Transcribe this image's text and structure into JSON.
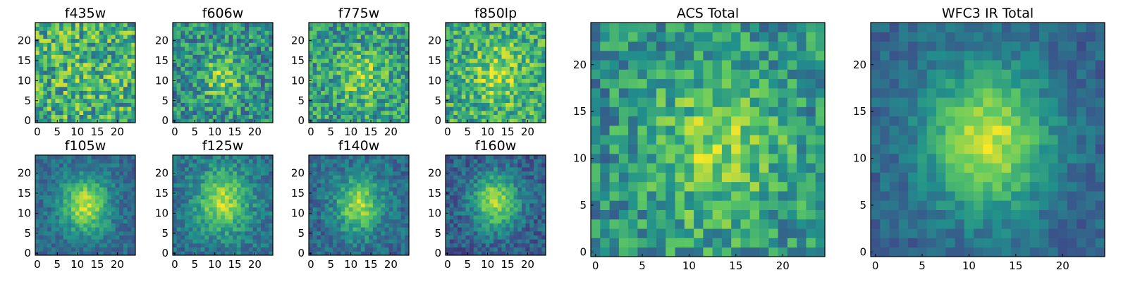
{
  "figure": {
    "colormap": [
      "#440154",
      "#3b528b",
      "#21918c",
      "#5ec962",
      "#fde725"
    ],
    "background": "#ffffff"
  },
  "chart_data": [
    {
      "type": "heatmap",
      "title": "f435w",
      "xlabel": "",
      "ylabel": "",
      "grid_size": 25,
      "xlim": [
        0,
        24
      ],
      "ylim": [
        0,
        24
      ],
      "xticks": [
        0,
        5,
        10,
        15,
        20
      ],
      "yticks": [
        0,
        5,
        10,
        15,
        20
      ],
      "pattern": {
        "peak": [
          12,
          12
        ],
        "sigma": 6,
        "amplitude": 0.05,
        "base": 0.62,
        "noise": 0.3,
        "seed": 11
      }
    },
    {
      "type": "heatmap",
      "title": "f606w",
      "xlabel": "",
      "ylabel": "",
      "grid_size": 25,
      "xlim": [
        0,
        24
      ],
      "ylim": [
        0,
        24
      ],
      "xticks": [
        0,
        5,
        10,
        15,
        20
      ],
      "yticks": [
        0,
        5,
        10,
        15,
        20
      ],
      "pattern": {
        "peak": [
          12,
          11
        ],
        "sigma": 3.5,
        "amplitude": 0.3,
        "base": 0.5,
        "noise": 0.25,
        "seed": 23
      }
    },
    {
      "type": "heatmap",
      "title": "f775w",
      "xlabel": "",
      "ylabel": "",
      "grid_size": 25,
      "xlim": [
        0,
        24
      ],
      "ylim": [
        0,
        24
      ],
      "xticks": [
        0,
        5,
        10,
        15,
        20
      ],
      "yticks": [
        0,
        5,
        10,
        15,
        20
      ],
      "pattern": {
        "peak": [
          13,
          11
        ],
        "sigma": 4,
        "amplitude": 0.25,
        "base": 0.55,
        "noise": 0.25,
        "seed": 37
      }
    },
    {
      "type": "heatmap",
      "title": "f850lp",
      "xlabel": "",
      "ylabel": "",
      "grid_size": 25,
      "xlim": [
        0,
        24
      ],
      "ylim": [
        0,
        24
      ],
      "xticks": [
        0,
        5,
        10,
        15,
        20
      ],
      "yticks": [
        0,
        5,
        10,
        15,
        20
      ],
      "pattern": {
        "peak": [
          13,
          12
        ],
        "sigma": 4.5,
        "amplitude": 0.25,
        "base": 0.6,
        "noise": 0.25,
        "seed": 41
      }
    },
    {
      "type": "heatmap",
      "title": "f105w",
      "xlabel": "",
      "ylabel": "",
      "grid_size": 25,
      "xlim": [
        0,
        24
      ],
      "ylim": [
        0,
        24
      ],
      "xticks": [
        0,
        5,
        10,
        15,
        20
      ],
      "yticks": [
        0,
        5,
        10,
        15,
        20
      ],
      "pattern": {
        "peak": [
          12,
          12
        ],
        "sigma": 4,
        "amplitude": 0.55,
        "base": 0.35,
        "noise": 0.12,
        "seed": 53
      }
    },
    {
      "type": "heatmap",
      "title": "f125w",
      "xlabel": "",
      "ylabel": "",
      "grid_size": 25,
      "xlim": [
        0,
        24
      ],
      "ylim": [
        0,
        24
      ],
      "xticks": [
        0,
        5,
        10,
        15,
        20
      ],
      "yticks": [
        0,
        5,
        10,
        15,
        20
      ],
      "pattern": {
        "peak": [
          12,
          13
        ],
        "sigma": 4.5,
        "amplitude": 0.5,
        "base": 0.38,
        "noise": 0.14,
        "seed": 67
      }
    },
    {
      "type": "heatmap",
      "title": "f140w",
      "xlabel": "",
      "ylabel": "",
      "grid_size": 25,
      "xlim": [
        0,
        24
      ],
      "ylim": [
        0,
        24
      ],
      "xticks": [
        0,
        5,
        10,
        15,
        20
      ],
      "yticks": [
        0,
        5,
        10,
        15,
        20
      ],
      "pattern": {
        "peak": [
          12,
          12
        ],
        "sigma": 4,
        "amplitude": 0.5,
        "base": 0.35,
        "noise": 0.14,
        "seed": 79
      }
    },
    {
      "type": "heatmap",
      "title": "f160w",
      "xlabel": "",
      "ylabel": "",
      "grid_size": 25,
      "xlim": [
        0,
        24
      ],
      "ylim": [
        0,
        24
      ],
      "xticks": [
        0,
        5,
        10,
        15,
        20
      ],
      "yticks": [
        0,
        5,
        10,
        15,
        20
      ],
      "pattern": {
        "peak": [
          12,
          13
        ],
        "sigma": 4,
        "amplitude": 0.55,
        "base": 0.3,
        "noise": 0.14,
        "seed": 97
      }
    },
    {
      "type": "heatmap",
      "title": "ACS Total",
      "xlabel": "",
      "ylabel": "",
      "grid_size": 25,
      "xlim": [
        0,
        24
      ],
      "ylim": [
        0,
        24
      ],
      "xticks": [
        0,
        5,
        10,
        15,
        20
      ],
      "yticks": [
        0,
        5,
        10,
        15,
        20
      ],
      "pattern": {
        "peak": [
          13,
          11
        ],
        "sigma": 5,
        "amplitude": 0.3,
        "base": 0.5,
        "noise": 0.22,
        "seed": 113
      }
    },
    {
      "type": "heatmap",
      "title": "WFC3 IR Total",
      "xlabel": "",
      "ylabel": "",
      "grid_size": 25,
      "xlim": [
        0,
        24
      ],
      "ylim": [
        0,
        24
      ],
      "xticks": [
        0,
        5,
        10,
        15,
        20
      ],
      "yticks": [
        0,
        5,
        10,
        15,
        20
      ],
      "pattern": {
        "peak": [
          12,
          12
        ],
        "sigma": 4.5,
        "amplitude": 0.6,
        "base": 0.32,
        "noise": 0.1,
        "seed": 131
      }
    }
  ]
}
